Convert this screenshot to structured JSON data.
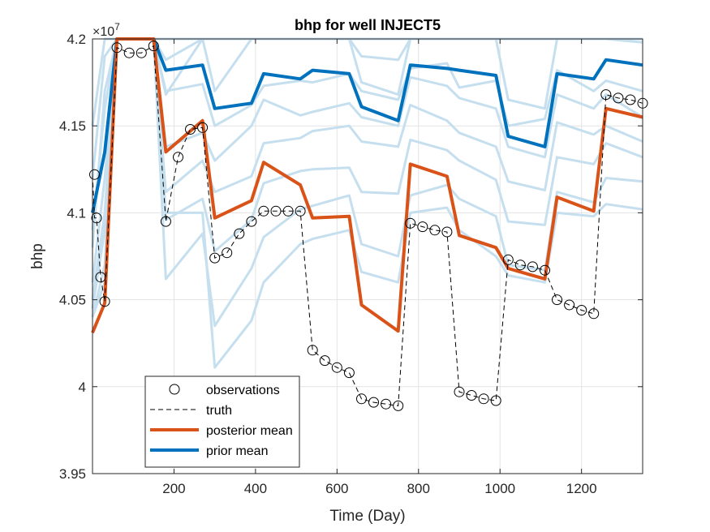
{
  "chart_data": {
    "type": "line",
    "title": "bhp for well INJECT5",
    "xlabel": "Time (Day)",
    "ylabel": "bhp",
    "exponent_label": "×10",
    "exponent_power": "7",
    "xlim": [
      0,
      1350
    ],
    "ylim": [
      3.95,
      4.2
    ],
    "xticks": [
      200,
      400,
      600,
      800,
      1000,
      1200
    ],
    "xtick_labels": [
      "200",
      "400",
      "600",
      "800",
      "1000",
      "1200"
    ],
    "yticks": [
      3.95,
      4.0,
      4.05,
      4.1,
      4.15,
      4.2
    ],
    "ytick_labels": [
      "3.95",
      "4",
      "4.05",
      "4.1",
      "4.15",
      "4.2"
    ],
    "grid": true,
    "legend_position": "bottom-left",
    "legend": [
      "observations",
      "truth",
      "posterior mean",
      "prior mean"
    ],
    "colors": {
      "posterior": "#D95319",
      "prior": "#0072BD",
      "ensemble": "#C5DFEF",
      "truth": "#000000",
      "grid": "#E3E3E3"
    },
    "truth": {
      "x": [
        0,
        5,
        10,
        20,
        30,
        60,
        90,
        120,
        150,
        180,
        210,
        240,
        270,
        300,
        330,
        360,
        390,
        420,
        450,
        480,
        510,
        540,
        570,
        600,
        630,
        660,
        690,
        720,
        750,
        780,
        810,
        840,
        870,
        900,
        930,
        960,
        990,
        1020,
        1050,
        1080,
        1110,
        1140,
        1170,
        1200,
        1230,
        1260,
        1290,
        1320,
        1350
      ],
      "y": [
        4.122,
        4.097,
        4.097,
        4.063,
        4.049,
        4.195,
        4.192,
        4.192,
        4.196,
        4.095,
        4.132,
        4.148,
        4.149,
        4.074,
        4.077,
        4.088,
        4.095,
        4.101,
        4.101,
        4.101,
        4.101,
        4.021,
        4.015,
        4.011,
        4.008,
        3.993,
        3.991,
        3.99,
        3.989,
        4.094,
        4.092,
        4.09,
        4.089,
        3.997,
        3.995,
        3.993,
        3.992,
        4.073,
        4.07,
        4.069,
        4.067,
        4.05,
        4.047,
        4.044,
        4.042,
        4.168,
        4.166,
        4.165,
        4.163
      ]
    },
    "observations": {
      "x": [
        5,
        10,
        20,
        30,
        60,
        90,
        120,
        150,
        180,
        210,
        240,
        270,
        300,
        330,
        360,
        390,
        420,
        450,
        480,
        510,
        540,
        570,
        600,
        630,
        660,
        690,
        720,
        750,
        780,
        810,
        840,
        870,
        900,
        930,
        960,
        990,
        1020,
        1050,
        1080,
        1110,
        1140,
        1170,
        1200,
        1230,
        1260,
        1290,
        1320,
        1350
      ],
      "y": [
        4.122,
        4.097,
        4.063,
        4.049,
        4.195,
        4.192,
        4.192,
        4.196,
        4.095,
        4.132,
        4.148,
        4.149,
        4.074,
        4.077,
        4.088,
        4.095,
        4.101,
        4.101,
        4.101,
        4.101,
        4.021,
        4.015,
        4.011,
        4.008,
        3.993,
        3.991,
        3.99,
        3.989,
        4.094,
        4.092,
        4.09,
        4.089,
        3.997,
        3.995,
        3.993,
        3.992,
        4.073,
        4.07,
        4.069,
        4.067,
        4.05,
        4.047,
        4.044,
        4.042,
        4.168,
        4.166,
        4.165,
        4.163
      ]
    },
    "posterior_mean": {
      "x": [
        0,
        30,
        60,
        150,
        180,
        270,
        300,
        390,
        420,
        510,
        540,
        630,
        660,
        750,
        780,
        870,
        900,
        990,
        1020,
        1110,
        1140,
        1230,
        1260,
        1350
      ],
      "y": [
        4.031,
        4.048,
        4.2,
        4.2,
        4.135,
        4.153,
        4.097,
        4.107,
        4.129,
        4.116,
        4.097,
        4.098,
        4.047,
        4.032,
        4.128,
        4.121,
        4.087,
        4.08,
        4.068,
        4.062,
        4.109,
        4.101,
        4.16,
        4.155
      ]
    },
    "prior_mean": {
      "x": [
        0,
        30,
        60,
        150,
        180,
        270,
        300,
        390,
        420,
        510,
        540,
        630,
        660,
        750,
        780,
        870,
        900,
        990,
        1020,
        1110,
        1140,
        1230,
        1260,
        1350
      ],
      "y": [
        4.1,
        4.135,
        4.2,
        4.2,
        4.182,
        4.185,
        4.16,
        4.163,
        4.18,
        4.177,
        4.182,
        4.18,
        4.161,
        4.153,
        4.185,
        4.183,
        4.182,
        4.179,
        4.144,
        4.138,
        4.18,
        4.177,
        4.188,
        4.185
      ]
    },
    "ensemble": [
      {
        "x": [
          0,
          30,
          60,
          1350
        ],
        "y": [
          4.15,
          4.2,
          4.2,
          4.2
        ]
      },
      {
        "x": [
          0,
          30,
          60,
          150,
          180,
          270,
          300,
          390,
          420,
          510,
          540,
          630,
          660,
          750,
          780,
          870,
          900,
          990,
          1020,
          1110,
          1140,
          1230,
          1260,
          1350
        ],
        "y": [
          4.12,
          4.19,
          4.2,
          4.2,
          4.188,
          4.2,
          4.2,
          4.2,
          4.2,
          4.2,
          4.2,
          4.2,
          4.19,
          4.188,
          4.2,
          4.2,
          4.2,
          4.2,
          4.2,
          4.2,
          4.2,
          4.2,
          4.2,
          4.2
        ]
      },
      {
        "x": [
          0,
          30,
          60,
          150,
          180,
          270,
          300,
          390,
          420,
          510,
          540,
          630,
          660,
          750,
          780,
          870,
          900,
          990,
          1020,
          1110,
          1140,
          1230,
          1260,
          1350
        ],
        "y": [
          4.08,
          4.17,
          4.2,
          4.2,
          4.168,
          4.2,
          4.17,
          4.2,
          4.2,
          4.2,
          4.2,
          4.2,
          4.175,
          4.168,
          4.2,
          4.2,
          4.2,
          4.2,
          4.165,
          4.16,
          4.2,
          4.2,
          4.2,
          4.198
        ]
      },
      {
        "x": [
          0,
          30,
          60,
          150,
          180,
          270,
          300,
          390,
          420,
          510,
          540,
          630,
          660,
          750,
          780,
          870,
          900,
          990,
          1020,
          1110,
          1140,
          1230,
          1260,
          1350
        ],
        "y": [
          4.09,
          4.16,
          4.2,
          4.2,
          4.17,
          4.174,
          4.15,
          4.162,
          4.173,
          4.176,
          4.175,
          4.18,
          4.17,
          4.165,
          4.183,
          4.186,
          4.172,
          4.176,
          4.15,
          4.154,
          4.182,
          4.17,
          4.176,
          4.17
        ]
      },
      {
        "x": [
          0,
          30,
          60,
          150,
          180,
          270,
          300,
          390,
          420,
          510,
          540,
          630,
          660,
          750,
          780,
          870,
          900,
          990,
          1020,
          1110,
          1140,
          1230,
          1260,
          1350
        ],
        "y": [
          4.06,
          4.12,
          4.2,
          4.2,
          4.138,
          4.146,
          4.13,
          4.15,
          4.165,
          4.156,
          4.158,
          4.163,
          4.155,
          4.15,
          4.178,
          4.173,
          4.166,
          4.16,
          4.138,
          4.132,
          4.168,
          4.16,
          4.168,
          4.155
        ]
      },
      {
        "x": [
          0,
          30,
          60,
          150,
          180,
          270,
          300,
          390,
          420,
          510,
          540,
          630,
          660,
          750,
          780,
          870,
          900,
          990,
          1020,
          1110,
          1140,
          1230,
          1260,
          1350
        ],
        "y": [
          4.05,
          4.1,
          4.2,
          4.2,
          4.112,
          4.13,
          4.112,
          4.121,
          4.14,
          4.143,
          4.147,
          4.15,
          4.141,
          4.138,
          4.162,
          4.153,
          4.146,
          4.138,
          4.118,
          4.113,
          4.152,
          4.145,
          4.15,
          4.141
        ]
      },
      {
        "x": [
          0,
          30,
          60,
          150,
          180,
          270,
          300,
          390,
          420,
          510,
          540,
          630,
          660,
          750,
          780,
          870,
          900,
          990,
          1020,
          1110,
          1140,
          1230,
          1260,
          1350
        ],
        "y": [
          4.045,
          4.09,
          4.2,
          4.2,
          4.096,
          4.108,
          4.078,
          4.096,
          4.117,
          4.124,
          4.125,
          4.126,
          4.112,
          4.111,
          4.142,
          4.136,
          4.13,
          4.119,
          4.095,
          4.093,
          4.132,
          4.128,
          4.14,
          4.132
        ]
      },
      {
        "x": [
          0,
          30,
          60,
          150,
          180,
          270,
          300,
          390,
          420,
          510,
          540,
          630,
          660,
          750,
          780,
          870,
          900,
          990,
          1020,
          1110,
          1140,
          1230,
          1260,
          1350
        ],
        "y": [
          4.04,
          4.07,
          4.2,
          4.2,
          4.062,
          4.088,
          4.035,
          4.068,
          4.086,
          4.102,
          4.104,
          4.11,
          4.082,
          4.075,
          4.11,
          4.116,
          4.108,
          4.098,
          4.07,
          4.067,
          4.112,
          4.106,
          4.12,
          4.118
        ]
      },
      {
        "x": [
          0,
          30,
          60,
          150,
          180,
          270,
          300,
          390,
          420,
          510,
          540,
          630,
          660,
          750,
          780,
          870,
          900,
          990,
          1020,
          1110,
          1140,
          1230,
          1260,
          1350
        ],
        "y": [
          4.04,
          4.06,
          4.2,
          4.2,
          4.1,
          4.1,
          4.011,
          4.038,
          4.06,
          4.082,
          4.085,
          4.09,
          4.066,
          4.06,
          4.1,
          4.103,
          4.09,
          4.075,
          4.064,
          4.06,
          4.1,
          4.098,
          4.105,
          4.102
        ]
      }
    ]
  }
}
